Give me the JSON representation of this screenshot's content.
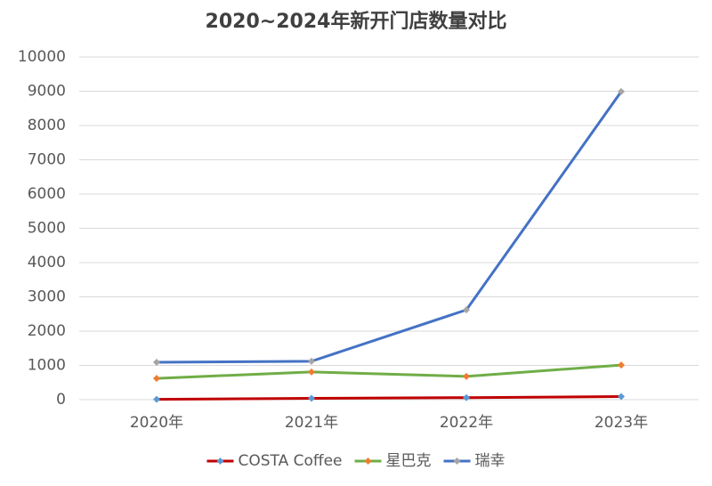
{
  "chart_data": {
    "type": "line",
    "title": "2020~2024年新开门店数量对比",
    "categories": [
      "2020年",
      "2021年",
      "2022年",
      "2023年"
    ],
    "series": [
      {
        "name": "COSTA Coffee",
        "color": "#c00000",
        "marker_color": "#5b9bd5",
        "values": [
          10,
          40,
          60,
          90
        ]
      },
      {
        "name": "星巴克",
        "color": "#70ad47",
        "marker_color": "#ed7d31",
        "values": [
          620,
          810,
          680,
          1010
        ]
      },
      {
        "name": "瑞幸",
        "color": "#4472c4",
        "marker_color": "#a5a5a5",
        "values": [
          1090,
          1120,
          2620,
          8990
        ]
      }
    ],
    "ylim": [
      0,
      10000
    ],
    "yticks": [
      0,
      1000,
      2000,
      3000,
      4000,
      5000,
      6000,
      7000,
      8000,
      9000,
      10000
    ],
    "grid": true,
    "legend": "bottom"
  }
}
